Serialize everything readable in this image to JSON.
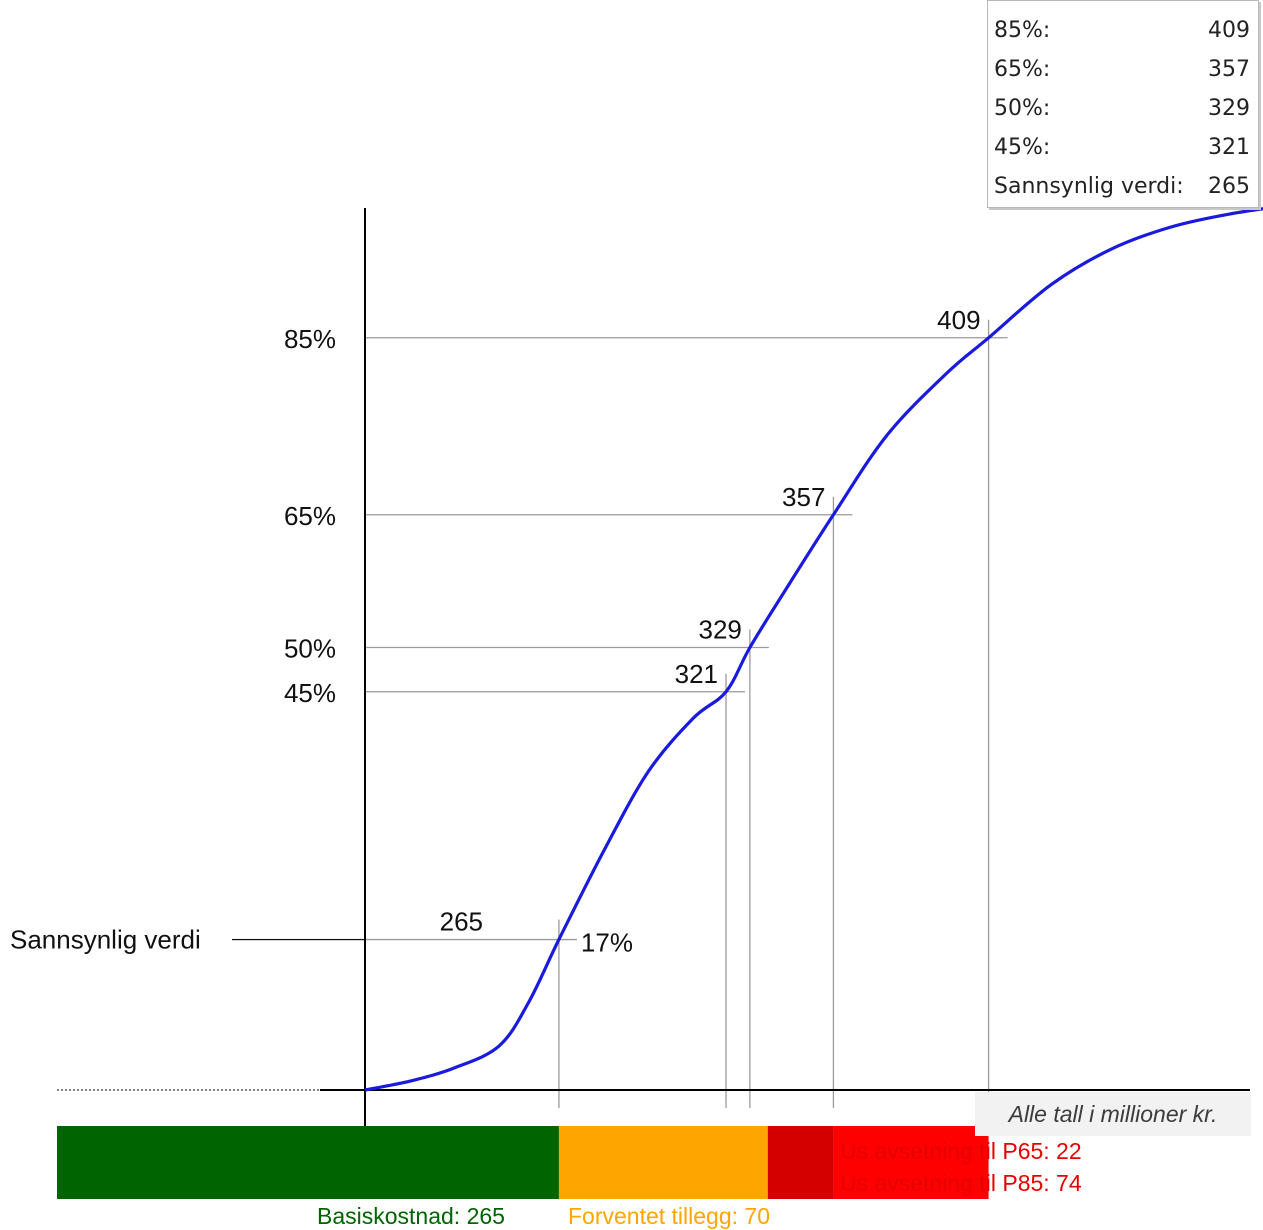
{
  "chart_data": {
    "type": "line",
    "y_levels": [
      {
        "label": "85%",
        "p": 0.85,
        "value_label": "409"
      },
      {
        "label": "65%",
        "p": 0.65,
        "value_label": "357"
      },
      {
        "label": "50%",
        "p": 0.5,
        "value_label": "329"
      },
      {
        "label": "45%",
        "p": 0.45,
        "value_label": "321"
      }
    ],
    "most_likely": {
      "label": "Sannsynlig verdi",
      "value_label": "265",
      "percent_label": "17%",
      "p": 0.17
    },
    "curve": {
      "x": [
        200,
        215,
        230,
        245,
        255,
        265,
        280,
        295,
        310,
        321,
        329,
        340,
        357,
        375,
        395,
        409,
        430,
        450,
        470,
        490,
        510
      ],
      "p": [
        0.0,
        0.01,
        0.025,
        0.05,
        0.1,
        0.17,
        0.27,
        0.36,
        0.42,
        0.45,
        0.5,
        0.56,
        0.65,
        0.74,
        0.81,
        0.85,
        0.91,
        0.95,
        0.975,
        0.99,
        1.0
      ]
    },
    "colors": {
      "curve": "#1a1adc",
      "grid": "#9a9a9a",
      "axis": "#000000"
    }
  },
  "summary_table": [
    {
      "label": "85%:",
      "value": "409"
    },
    {
      "label": "65%:",
      "value": "357"
    },
    {
      "label": "50%:",
      "value": "329"
    },
    {
      "label": "45%:",
      "value": "321"
    },
    {
      "label": "Sannsynlig verdi:",
      "value": "265"
    }
  ],
  "unit_note": "Alle tall i millioner kr.",
  "cost_bar": {
    "segments": [
      {
        "name": "basis",
        "from": 200,
        "to": 265,
        "color": "#006400"
      },
      {
        "name": "expected-addition",
        "from": 265,
        "to": 335,
        "color": "#ffa500"
      },
      {
        "name": "reserve-p65",
        "from": 335,
        "to": 357,
        "color": "#d40000"
      },
      {
        "name": "reserve-p85",
        "from": 357,
        "to": 409,
        "color": "#ff0000"
      }
    ],
    "basis_label": "Basiskostnad: 265",
    "expected_label": "Forventet tillegg: 70",
    "reserve_p65_label": "Us.avsetning til P65: 22",
    "reserve_p85_label": "Us.avsetning til P85: 74",
    "colors": {
      "basis_text": "#006400",
      "expected_text": "#ffa500",
      "reserve_text": "#e60000"
    }
  }
}
